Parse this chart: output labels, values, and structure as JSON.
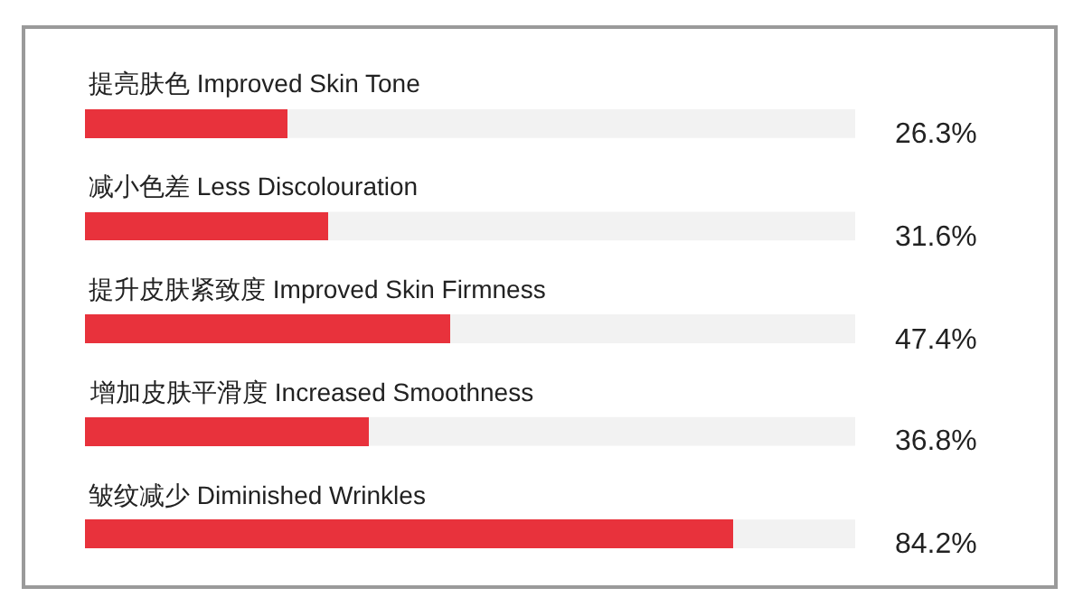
{
  "chart_data": {
    "type": "bar",
    "orientation": "horizontal",
    "categories": [
      "提亮肤色 Improved Skin Tone",
      "减小色差 Less Discolouration",
      "提升皮肤紧致度 Improved Skin Firmness",
      "增加皮肤平滑度 Increased Smoothness",
      "皱纹减少 Diminished Wrinkles"
    ],
    "values": [
      26.3,
      31.6,
      47.4,
      36.8,
      84.2
    ],
    "value_labels": [
      "26.3%",
      "31.6%",
      "47.4%",
      "36.8%",
      "84.2%"
    ],
    "color": "#e8323c",
    "xlim": [
      0,
      100
    ],
    "tick_labels": false,
    "grid": false
  }
}
